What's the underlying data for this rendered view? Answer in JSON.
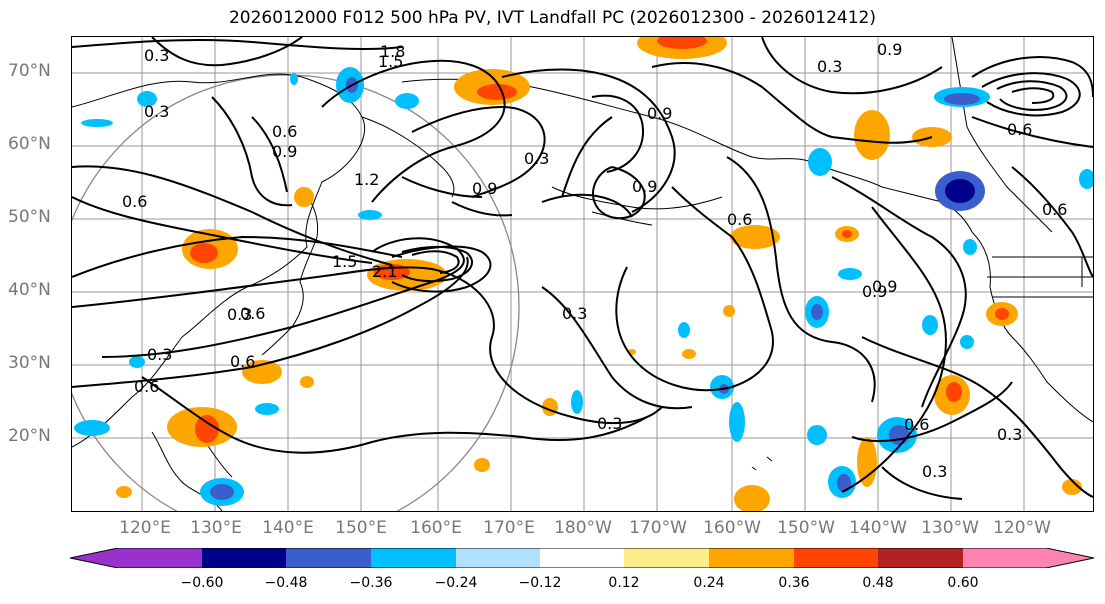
{
  "title": "2026012000 F012 500 hPa PV, IVT Landfall PC (2026012300 - 2026012412)",
  "lat_labels": [
    "70°N",
    "60°N",
    "50°N",
    "40°N",
    "30°N",
    "20°N"
  ],
  "lon_labels": [
    "120°E",
    "130°E",
    "140°E",
    "150°E",
    "160°E",
    "170°E",
    "180°W",
    "170°W",
    "160°W",
    "150°W",
    "140°W",
    "130°W",
    "120°W"
  ],
  "colorbar": {
    "ticks": [
      "−0.60",
      "−0.48",
      "−0.36",
      "−0.24",
      "−0.12",
      "0.12",
      "0.24",
      "0.36",
      "0.48",
      "0.60"
    ],
    "colors": [
      "#9932cc",
      "#00008b",
      "#3a5fcd",
      "#00bfff",
      "#b0e2ff",
      "#ffffff",
      "#ffec8b",
      "#ffa500",
      "#ff4500",
      "#b22222",
      "#ff83b0"
    ]
  },
  "contour_labels": [
    "0.3",
    "0.3",
    "1.8",
    "1.5",
    "0.9",
    "0.3",
    "0.9",
    "0.3",
    "0.9",
    "0.6",
    "0.9",
    "0.6",
    "0.3",
    "0.9",
    "1.2",
    "0.6",
    "0.9",
    "1.5",
    "2.1",
    "0.6",
    "0.3",
    "0.6",
    "0.6",
    "0.3",
    "0.9",
    "0.3",
    "0.6",
    "0.3",
    "0.3",
    "0.6",
    "0.6"
  ]
}
